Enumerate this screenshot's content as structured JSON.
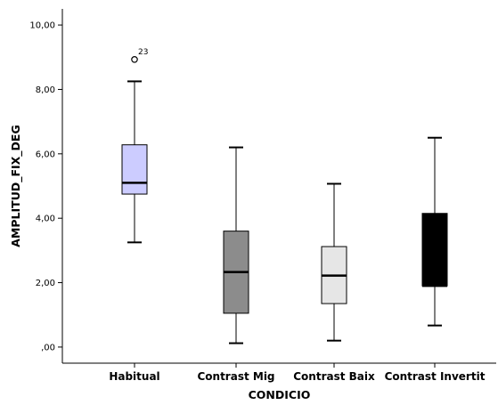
{
  "chart_data": {
    "type": "boxplot",
    "xlabel": "CONDICIO",
    "ylabel": "AMPLITUD_FIX_DEG",
    "ylim": [
      -0.5,
      10.5
    ],
    "yticks": [
      0,
      2,
      4,
      6,
      8,
      10
    ],
    "ytick_labels": [
      ",00",
      "2,00",
      "4,00",
      "6,00",
      "8,00",
      "10,00"
    ],
    "grid": false,
    "categories": [
      "Habitual",
      "Contrast Mig",
      "Contrast Baix",
      "Contrast Invertit"
    ],
    "boxes": [
      {
        "category": "Habitual",
        "whisker_low": 3.25,
        "q1": 4.75,
        "median": 5.1,
        "q3": 6.28,
        "whisker_high": 8.25,
        "color": "#ccccff",
        "outliers": [
          {
            "value": 8.93,
            "label": "23"
          }
        ]
      },
      {
        "category": "Contrast Mig",
        "whisker_low": 0.12,
        "q1": 1.05,
        "median": 2.33,
        "q3": 3.6,
        "whisker_high": 6.2,
        "color": "#8c8c8c",
        "outliers": []
      },
      {
        "category": "Contrast Baix",
        "whisker_low": 0.2,
        "q1": 1.35,
        "median": 2.22,
        "q3": 3.12,
        "whisker_high": 5.07,
        "color": "#e6e6e6",
        "outliers": []
      },
      {
        "category": "Contrast Invertit",
        "whisker_low": 0.67,
        "q1": 1.9,
        "median": 1.9,
        "q3": 4.15,
        "whisker_high": 6.5,
        "color": "#000000",
        "outliers": []
      }
    ]
  }
}
